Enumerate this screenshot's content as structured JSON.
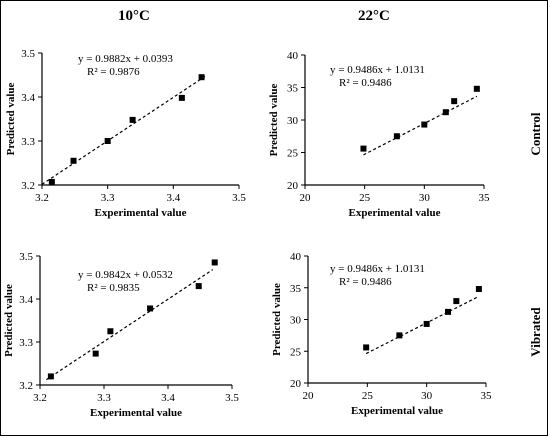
{
  "headers": {
    "col1": "10°C",
    "col2": "22°C",
    "row1": "Control",
    "row2": "Vibrated"
  },
  "chart_data": [
    {
      "type": "scatter",
      "title": "",
      "xlabel": "Experimental value",
      "ylabel": "Predicted value",
      "xlim": [
        3.2,
        3.5
      ],
      "ylim": [
        3.2,
        3.5
      ],
      "xticks": [
        "3.2",
        "3.3",
        "3.4",
        "3.5"
      ],
      "yticks": [
        "3.2",
        "3.3",
        "3.4",
        "3.5"
      ],
      "series": [
        {
          "x": [
            3.215,
            3.248,
            3.3,
            3.338,
            3.413,
            3.443
          ],
          "y": [
            3.207,
            3.255,
            3.3,
            3.348,
            3.398,
            3.445
          ]
        }
      ],
      "trendline": {
        "slope": 0.9882,
        "intercept": 0.0393,
        "x_range": [
          3.2,
          3.45
        ]
      },
      "annotations": [
        "y = 0.9882x + 0.0393",
        "R² = 0.9876"
      ]
    },
    {
      "type": "scatter",
      "title": "",
      "xlabel": "Experimental value",
      "ylabel": "Predicted value",
      "xlim": [
        20,
        35
      ],
      "ylim": [
        20,
        40
      ],
      "xticks": [
        "20",
        "25",
        "30",
        "35"
      ],
      "yticks": [
        "20",
        "25",
        "30",
        "35",
        "40"
      ],
      "series": [
        {
          "x": [
            24.9,
            27.7,
            30.0,
            31.8,
            32.5,
            34.4
          ],
          "y": [
            25.6,
            27.5,
            29.3,
            31.2,
            32.9,
            34.8
          ]
        }
      ],
      "trendline": {
        "slope": 0.9486,
        "intercept": 1.0131,
        "x_range": [
          24.9,
          34.4
        ]
      },
      "annotations": [
        "y = 0.9486x + 1.0131",
        "R² = 0.9486"
      ]
    },
    {
      "type": "scatter",
      "title": "",
      "xlabel": "Experimental value",
      "ylabel": "Predicted value",
      "xlim": [
        3.2,
        3.5
      ],
      "ylim": [
        3.2,
        3.5
      ],
      "xticks": [
        "3.2",
        "3.3",
        "3.4",
        "3.5"
      ],
      "yticks": [
        "3.2",
        "3.3",
        "3.4",
        "3.5"
      ],
      "series": [
        {
          "x": [
            3.217,
            3.287,
            3.31,
            3.372,
            3.448,
            3.473
          ],
          "y": [
            3.22,
            3.273,
            3.325,
            3.378,
            3.43,
            3.485
          ]
        }
      ],
      "trendline": {
        "slope": 0.9842,
        "intercept": 0.0532,
        "x_range": [
          3.21,
          3.47
        ]
      },
      "annotations": [
        "y = 0.9842x + 0.0532",
        "R² = 0.9835"
      ]
    },
    {
      "type": "scatter",
      "title": "",
      "xlabel": "Experimental value",
      "ylabel": "Predicted value",
      "xlim": [
        20,
        35
      ],
      "ylim": [
        20,
        40
      ],
      "xticks": [
        "20",
        "25",
        "30",
        "35"
      ],
      "yticks": [
        "20",
        "25",
        "30",
        "35",
        "40"
      ],
      "series": [
        {
          "x": [
            24.9,
            27.7,
            30.0,
            31.8,
            32.5,
            34.4
          ],
          "y": [
            25.6,
            27.5,
            29.3,
            31.2,
            32.9,
            34.8
          ]
        }
      ],
      "trendline": {
        "slope": 0.9486,
        "intercept": 1.0131,
        "x_range": [
          24.9,
          34.4
        ]
      },
      "annotations": [
        "y = 0.9486x + 1.0131",
        "R² = 0.9486"
      ]
    }
  ]
}
